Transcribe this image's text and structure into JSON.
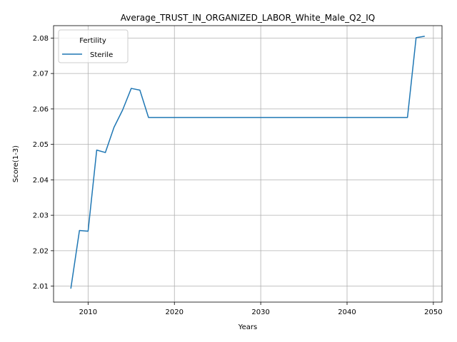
{
  "chart_data": {
    "type": "line",
    "title": "Average_TRUST_IN_ORGANIZED_LABOR_White_Male_Q2_IQ",
    "xlabel": "Years",
    "ylabel": "Score(1-3)",
    "xlim": [
      2006.0,
      2051.0
    ],
    "ylim": [
      2.0055,
      2.0835
    ],
    "xticks": [
      2010,
      2020,
      2030,
      2040,
      2050
    ],
    "xtick_labels": [
      "2010",
      "2020",
      "2030",
      "2040",
      "2050"
    ],
    "yticks": [
      2.01,
      2.02,
      2.03,
      2.04,
      2.05,
      2.06,
      2.07,
      2.08
    ],
    "ytick_labels": [
      "2.01",
      "2.02",
      "2.03",
      "2.04",
      "2.05",
      "2.06",
      "2.07",
      "2.08"
    ],
    "grid": true,
    "legend": {
      "title": "Fertility",
      "placement": "upper-left"
    },
    "series": [
      {
        "name": "Sterile",
        "color": "#1f77b4",
        "x": [
          2008,
          2009,
          2010,
          2011,
          2012,
          2013,
          2014,
          2015,
          2016,
          2017,
          2018,
          2019,
          2020,
          2021,
          2022,
          2023,
          2024,
          2025,
          2026,
          2027,
          2028,
          2029,
          2030,
          2031,
          2032,
          2033,
          2034,
          2035,
          2036,
          2037,
          2038,
          2039,
          2040,
          2041,
          2042,
          2043,
          2044,
          2045,
          2046,
          2047,
          2048,
          2049
        ],
        "y": [
          2.0093,
          2.0257,
          2.0255,
          2.0484,
          2.0477,
          2.0548,
          2.0597,
          2.0658,
          2.0653,
          2.0576,
          2.0576,
          2.0576,
          2.0576,
          2.0576,
          2.0576,
          2.0576,
          2.0576,
          2.0576,
          2.0576,
          2.0576,
          2.0576,
          2.0576,
          2.0576,
          2.0576,
          2.0576,
          2.0576,
          2.0576,
          2.0576,
          2.0576,
          2.0576,
          2.0576,
          2.0576,
          2.0576,
          2.0576,
          2.0576,
          2.0576,
          2.0576,
          2.0576,
          2.0576,
          2.0576,
          2.0801,
          2.0805
        ]
      }
    ]
  }
}
